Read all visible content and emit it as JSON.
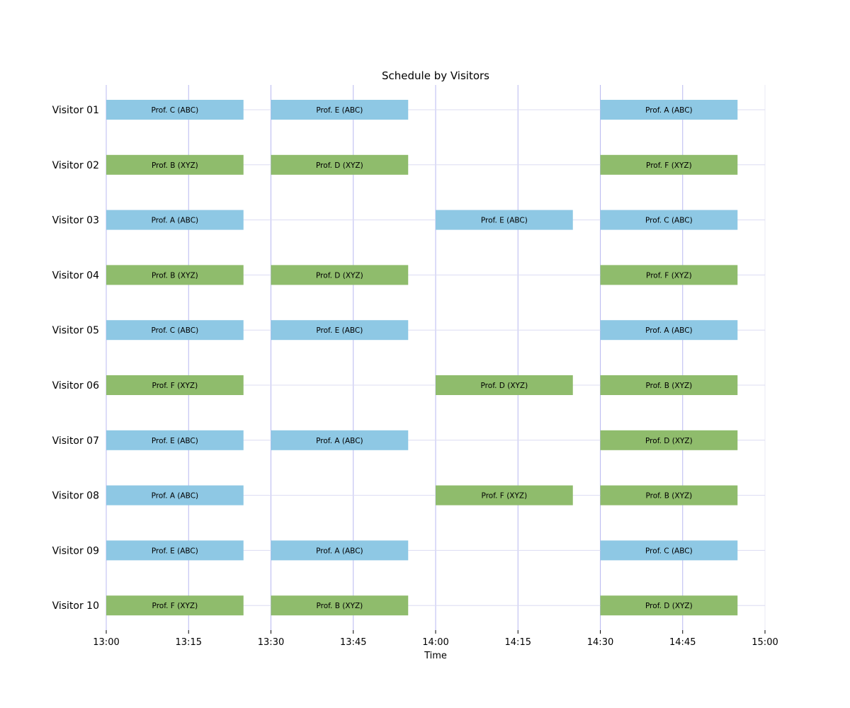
{
  "chart_data": {
    "type": "gantt",
    "title": "Schedule by Visitors",
    "xlabel": "Time",
    "ylabel": "",
    "x_ticks": [
      "13:00",
      "13:15",
      "13:30",
      "13:45",
      "14:00",
      "14:15",
      "14:30",
      "14:45",
      "15:00"
    ],
    "x_range": [
      "13:00",
      "15:00"
    ],
    "grid": true,
    "visitors": [
      "Visitor 01",
      "Visitor 02",
      "Visitor 03",
      "Visitor 04",
      "Visitor 05",
      "Visitor 06",
      "Visitor 07",
      "Visitor 08",
      "Visitor 09",
      "Visitor 10"
    ],
    "group_colors": {
      "ABC": "#8ec8e4",
      "XYZ": "#8fbc6c"
    },
    "grid_colors": {
      "vertical": "#b8b8f0",
      "horizontal": "#dcdcf2"
    },
    "meetings": [
      {
        "visitor": "Visitor 01",
        "start": "13:00",
        "end": "13:25",
        "label": "Prof. C (ABC)",
        "group": "ABC"
      },
      {
        "visitor": "Visitor 01",
        "start": "13:30",
        "end": "13:55",
        "label": "Prof. E (ABC)",
        "group": "ABC"
      },
      {
        "visitor": "Visitor 01",
        "start": "14:30",
        "end": "14:55",
        "label": "Prof. A (ABC)",
        "group": "ABC"
      },
      {
        "visitor": "Visitor 02",
        "start": "13:00",
        "end": "13:25",
        "label": "Prof. B (XYZ)",
        "group": "XYZ"
      },
      {
        "visitor": "Visitor 02",
        "start": "13:30",
        "end": "13:55",
        "label": "Prof. D (XYZ)",
        "group": "XYZ"
      },
      {
        "visitor": "Visitor 02",
        "start": "14:30",
        "end": "14:55",
        "label": "Prof. F (XYZ)",
        "group": "XYZ"
      },
      {
        "visitor": "Visitor 03",
        "start": "13:00",
        "end": "13:25",
        "label": "Prof. A (ABC)",
        "group": "ABC"
      },
      {
        "visitor": "Visitor 03",
        "start": "14:00",
        "end": "14:25",
        "label": "Prof. E (ABC)",
        "group": "ABC"
      },
      {
        "visitor": "Visitor 03",
        "start": "14:30",
        "end": "14:55",
        "label": "Prof. C (ABC)",
        "group": "ABC"
      },
      {
        "visitor": "Visitor 04",
        "start": "13:00",
        "end": "13:25",
        "label": "Prof. B (XYZ)",
        "group": "XYZ"
      },
      {
        "visitor": "Visitor 04",
        "start": "13:30",
        "end": "13:55",
        "label": "Prof. D (XYZ)",
        "group": "XYZ"
      },
      {
        "visitor": "Visitor 04",
        "start": "14:30",
        "end": "14:55",
        "label": "Prof. F (XYZ)",
        "group": "XYZ"
      },
      {
        "visitor": "Visitor 05",
        "start": "13:00",
        "end": "13:25",
        "label": "Prof. C (ABC)",
        "group": "ABC"
      },
      {
        "visitor": "Visitor 05",
        "start": "13:30",
        "end": "13:55",
        "label": "Prof. E (ABC)",
        "group": "ABC"
      },
      {
        "visitor": "Visitor 05",
        "start": "14:30",
        "end": "14:55",
        "label": "Prof. A (ABC)",
        "group": "ABC"
      },
      {
        "visitor": "Visitor 06",
        "start": "13:00",
        "end": "13:25",
        "label": "Prof. F (XYZ)",
        "group": "XYZ"
      },
      {
        "visitor": "Visitor 06",
        "start": "14:00",
        "end": "14:25",
        "label": "Prof. D (XYZ)",
        "group": "XYZ"
      },
      {
        "visitor": "Visitor 06",
        "start": "14:30",
        "end": "14:55",
        "label": "Prof. B (XYZ)",
        "group": "XYZ"
      },
      {
        "visitor": "Visitor 07",
        "start": "13:00",
        "end": "13:25",
        "label": "Prof. E (ABC)",
        "group": "ABC"
      },
      {
        "visitor": "Visitor 07",
        "start": "13:30",
        "end": "13:55",
        "label": "Prof. A (ABC)",
        "group": "ABC"
      },
      {
        "visitor": "Visitor 07",
        "start": "14:30",
        "end": "14:55",
        "label": "Prof. D (XYZ)",
        "group": "XYZ"
      },
      {
        "visitor": "Visitor 08",
        "start": "13:00",
        "end": "13:25",
        "label": "Prof. A (ABC)",
        "group": "ABC"
      },
      {
        "visitor": "Visitor 08",
        "start": "14:00",
        "end": "14:25",
        "label": "Prof. F (XYZ)",
        "group": "XYZ"
      },
      {
        "visitor": "Visitor 08",
        "start": "14:30",
        "end": "14:55",
        "label": "Prof. B (XYZ)",
        "group": "XYZ"
      },
      {
        "visitor": "Visitor 09",
        "start": "13:00",
        "end": "13:25",
        "label": "Prof. E (ABC)",
        "group": "ABC"
      },
      {
        "visitor": "Visitor 09",
        "start": "13:30",
        "end": "13:55",
        "label": "Prof. A (ABC)",
        "group": "ABC"
      },
      {
        "visitor": "Visitor 09",
        "start": "14:30",
        "end": "14:55",
        "label": "Prof. C (ABC)",
        "group": "ABC"
      },
      {
        "visitor": "Visitor 10",
        "start": "13:00",
        "end": "13:25",
        "label": "Prof. F (XYZ)",
        "group": "XYZ"
      },
      {
        "visitor": "Visitor 10",
        "start": "13:30",
        "end": "13:55",
        "label": "Prof. B (XYZ)",
        "group": "XYZ"
      },
      {
        "visitor": "Visitor 10",
        "start": "14:30",
        "end": "14:55",
        "label": "Prof. D (XYZ)",
        "group": "XYZ"
      }
    ]
  }
}
